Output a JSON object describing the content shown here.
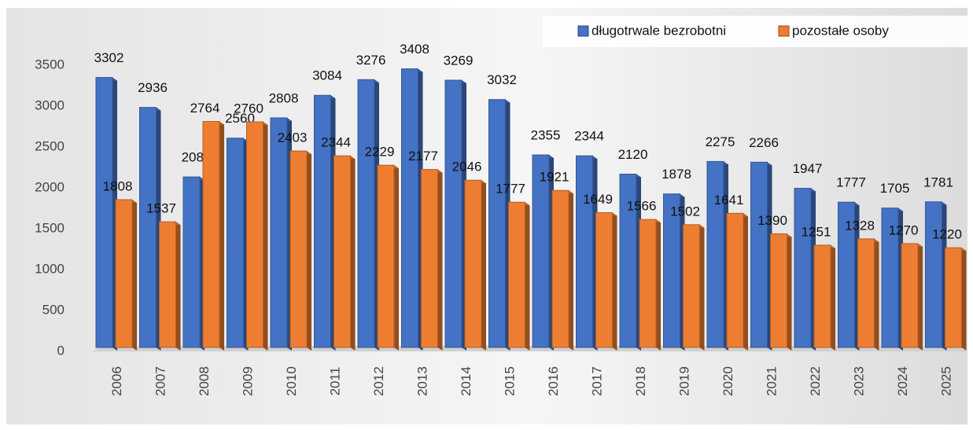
{
  "chart_data": {
    "type": "bar",
    "categories": [
      "2006",
      "2007",
      "2008",
      "2009",
      "2010",
      "2011",
      "2012",
      "2013",
      "2014",
      "2015",
      "2016",
      "2017",
      "2018",
      "2019",
      "2020",
      "2021",
      "2022",
      "2023",
      "2024",
      "2025"
    ],
    "series": [
      {
        "name": "długotrwale  bezrobotni",
        "color": "#4472c4",
        "values": [
          3302,
          2936,
          2086,
          2560,
          2808,
          3084,
          3276,
          3408,
          3269,
          3032,
          2355,
          2344,
          2120,
          1878,
          2275,
          2266,
          1947,
          1777,
          1705,
          1781
        ]
      },
      {
        "name": "pozostałe osoby",
        "color": "#ed7d31",
        "values": [
          1808,
          1537,
          2764,
          2760,
          2403,
          2344,
          2229,
          2177,
          2046,
          1777,
          1921,
          1649,
          1566,
          1502,
          1641,
          1390,
          1251,
          1328,
          1270,
          1220
        ]
      }
    ],
    "ylim": [
      0,
      3500
    ],
    "yticks": [
      0,
      500,
      1000,
      1500,
      2000,
      2500,
      3000,
      3500
    ],
    "legend": "top-right"
  }
}
